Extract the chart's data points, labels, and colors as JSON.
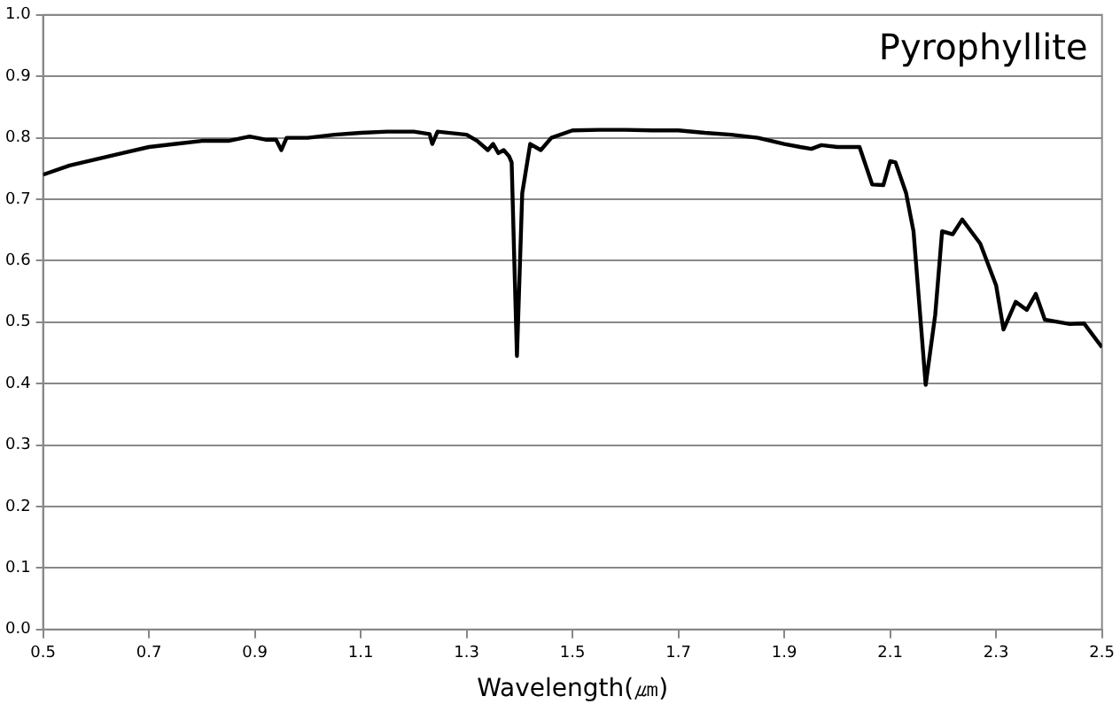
{
  "chart_data": {
    "type": "line",
    "title": "Pyrophyllite",
    "xlabel": "Wavelength(㎛)",
    "x": [
      0.5,
      0.55,
      0.6,
      0.65,
      0.7,
      0.75,
      0.8,
      0.85,
      0.89,
      0.92,
      0.94,
      0.95,
      0.96,
      1.0,
      1.05,
      1.1,
      1.15,
      1.2,
      1.23,
      1.235,
      1.245,
      1.3,
      1.32,
      1.34,
      1.35,
      1.36,
      1.37,
      1.38,
      1.385,
      1.39,
      1.395,
      1.405,
      1.42,
      1.44,
      1.46,
      1.5,
      1.55,
      1.6,
      1.65,
      1.7,
      1.75,
      1.8,
      1.85,
      1.9,
      1.93,
      1.951,
      1.97,
      2.0,
      2.042,
      2.066,
      2.087,
      2.1,
      2.11,
      2.13,
      2.144,
      2.167,
      2.185,
      2.198,
      2.218,
      2.236,
      2.27,
      2.3,
      2.314,
      2.337,
      2.358,
      2.375,
      2.392,
      2.42,
      2.439,
      2.466,
      2.5
    ],
    "series": [
      {
        "color": "#000000",
        "values": [
          0.74,
          0.755,
          0.765,
          0.775,
          0.785,
          0.79,
          0.795,
          0.795,
          0.802,
          0.797,
          0.797,
          0.78,
          0.8,
          0.8,
          0.805,
          0.808,
          0.81,
          0.81,
          0.806,
          0.79,
          0.81,
          0.805,
          0.795,
          0.78,
          0.79,
          0.775,
          0.78,
          0.77,
          0.76,
          0.6,
          0.445,
          0.71,
          0.79,
          0.78,
          0.8,
          0.812,
          0.813,
          0.813,
          0.812,
          0.812,
          0.808,
          0.805,
          0.8,
          0.79,
          0.785,
          0.782,
          0.788,
          0.785,
          0.785,
          0.724,
          0.723,
          0.762,
          0.76,
          0.71,
          0.648,
          0.398,
          0.512,
          0.648,
          0.643,
          0.667,
          0.628,
          0.56,
          0.488,
          0.533,
          0.52,
          0.546,
          0.504,
          0.5,
          0.497,
          0.498,
          0.459
        ]
      }
    ],
    "xlim": [
      0.5,
      2.5
    ],
    "xticks": [
      0.5,
      0.7,
      0.9,
      1.1,
      1.3,
      1.5,
      1.7,
      1.9,
      2.1,
      2.3,
      2.5
    ],
    "ylim": [
      0,
      1
    ],
    "yticks": [
      {
        "value": 0,
        "label": "0.0"
      },
      0.1,
      0.2,
      0.3,
      0.4,
      0.5,
      0.6,
      0.7,
      0.8,
      0.9,
      {
        "value": 1,
        "label": "1.0"
      }
    ],
    "grid": "y",
    "legend": false,
    "marker": "none",
    "line_style": "solid"
  }
}
